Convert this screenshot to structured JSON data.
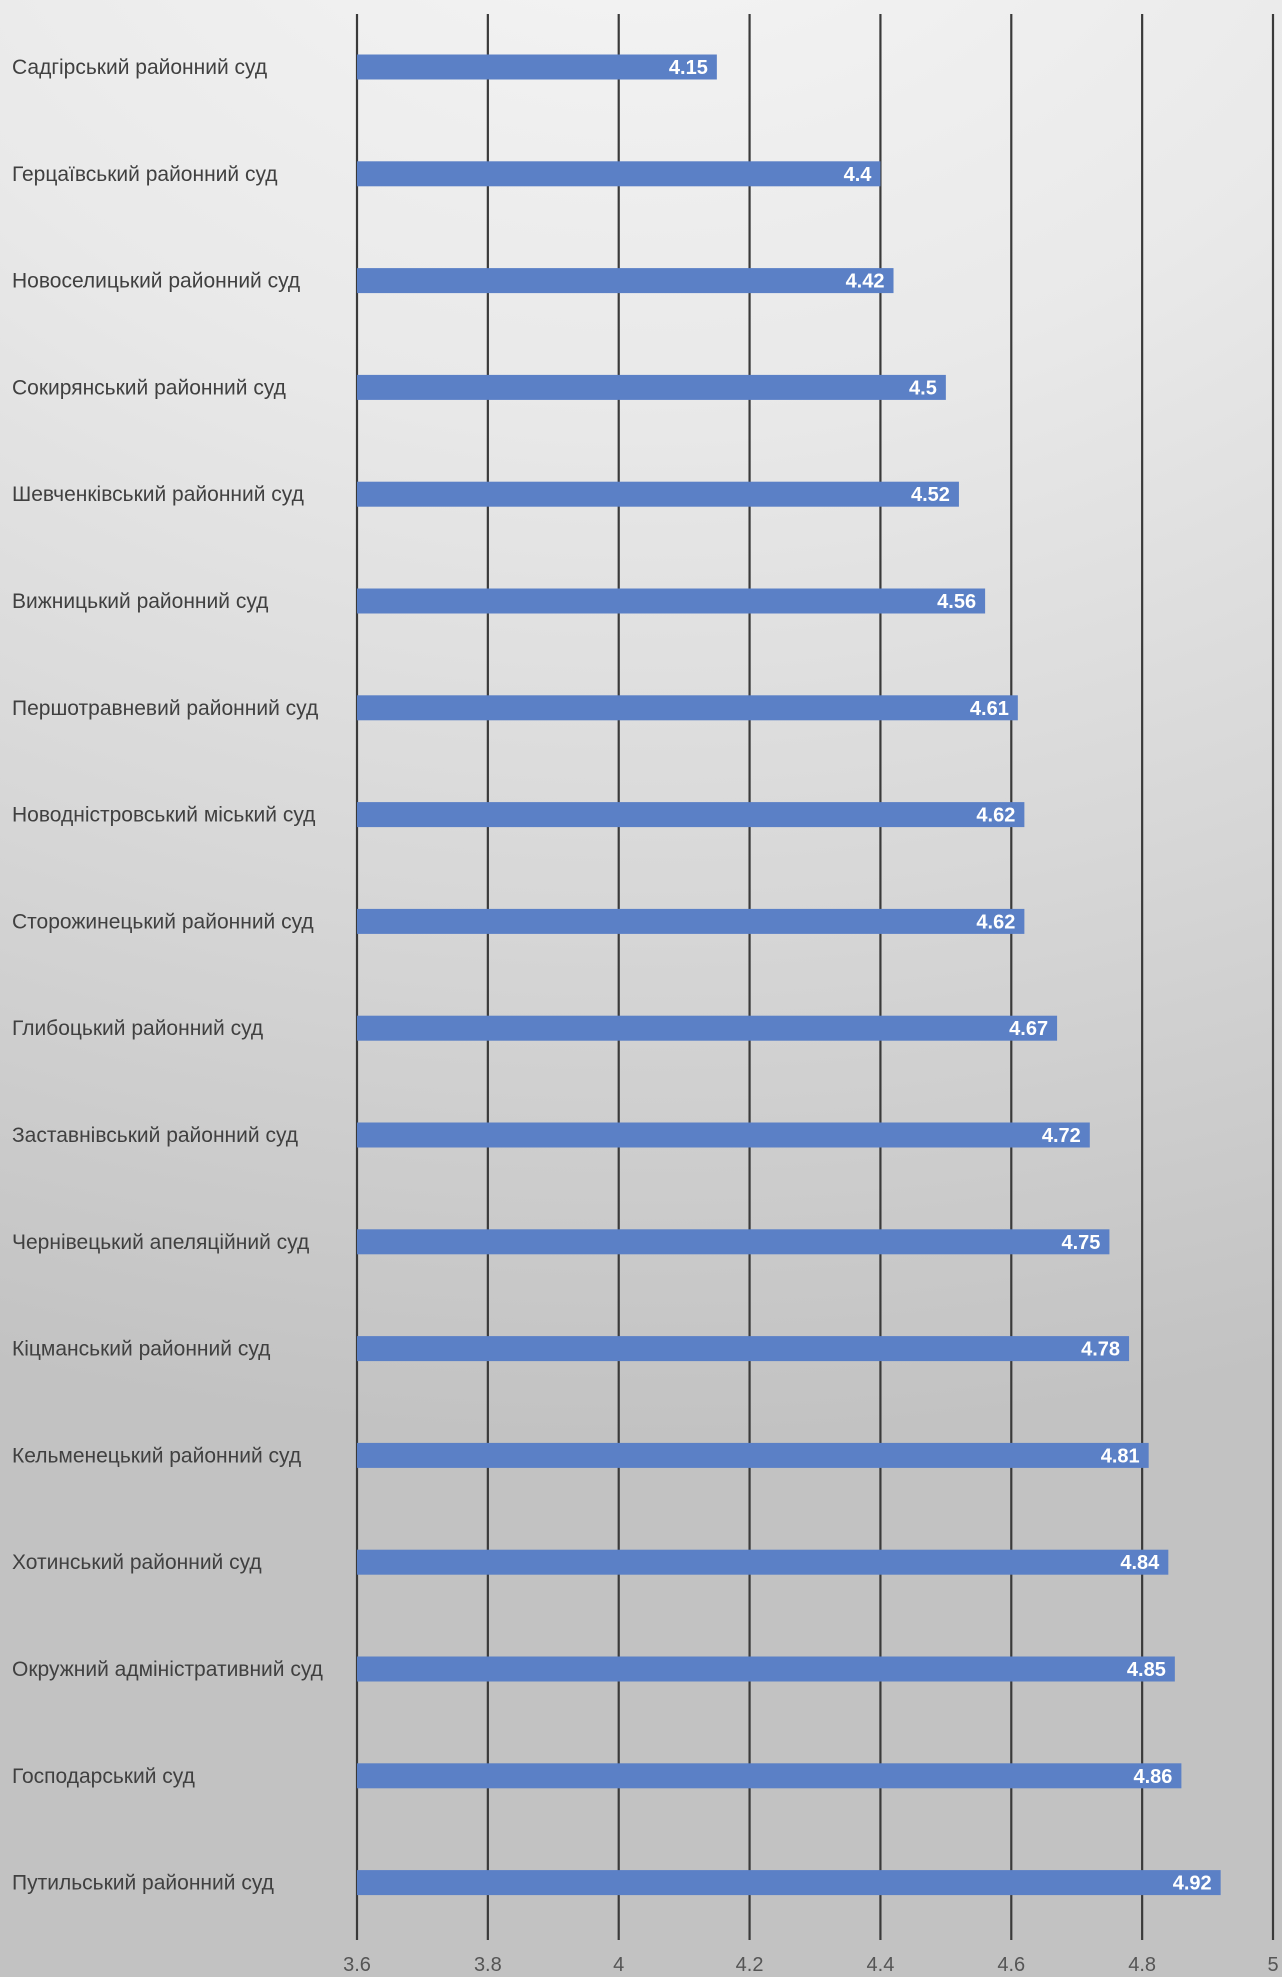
{
  "chart_data": {
    "type": "bar",
    "orientation": "horizontal",
    "title": "",
    "xlabel": "",
    "ylabel": "",
    "xlim": [
      3.6,
      5
    ],
    "x_ticks": [
      3.6,
      3.8,
      4,
      4.2,
      4.4,
      4.6,
      4.8,
      5
    ],
    "grid": "vertical-major",
    "legend": "none",
    "bar_color": "#5b80c6",
    "gridline_color": "#3a3a3a",
    "label_color": "#404040",
    "data_label_color": "#ffffff",
    "categories": [
      "Садгірський районний суд",
      "Герцаївський районний суд",
      "Новоселицький районний суд",
      "Сокирянський районний суд",
      "Шевченківський районний суд",
      "Вижницький районний суд",
      "Першотравневий районний суд",
      "Новодністровський міський суд",
      "Сторожинецький районний суд",
      "Глибоцький районний суд",
      "Заставнівський районний суд",
      "Чернівецький апеляційний суд",
      "Кіцманський районний суд",
      "Кельменецький районний суд",
      "Хотинський районний суд",
      "Окружний адміністративний суд",
      "Господарський суд",
      "Путильський районний суд"
    ],
    "values": [
      4.15,
      4.4,
      4.42,
      4.5,
      4.52,
      4.56,
      4.61,
      4.62,
      4.62,
      4.67,
      4.72,
      4.75,
      4.78,
      4.81,
      4.84,
      4.85,
      4.86,
      4.92
    ],
    "data_labels": [
      "4.15",
      "4.4",
      "4.42",
      "4.5",
      "4.52",
      "4.56",
      "4.61",
      "4.62",
      "4.62",
      "4.67",
      "4.72",
      "4.75",
      "4.78",
      "4.81",
      "4.84",
      "4.85",
      "4.86",
      "4.92"
    ]
  }
}
